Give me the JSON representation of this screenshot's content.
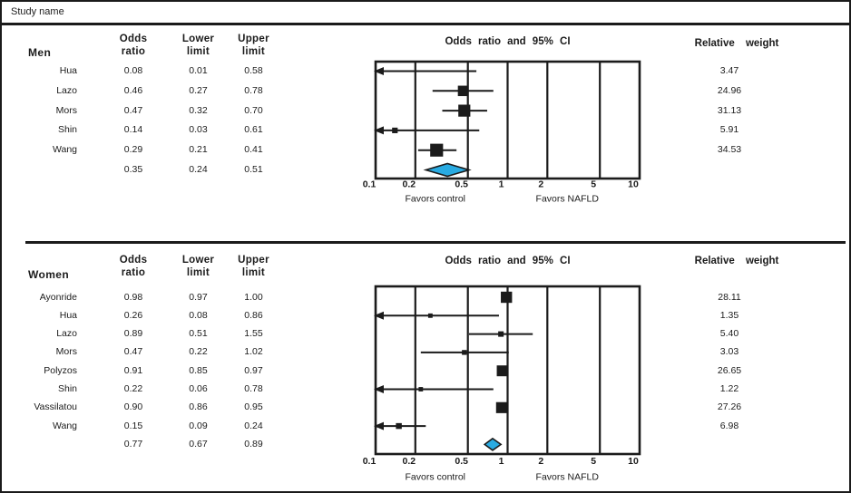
{
  "figure": {
    "study_name_label": "Study name",
    "ink_color": "#1b1b1b",
    "accent_color": "#29ABE2"
  },
  "chart_data": [
    {
      "type": "forest",
      "group_label": "Men",
      "plot_title": "Odds ratio and 95% CI",
      "col_headers": {
        "odds": [
          "Odds",
          "ratio"
        ],
        "lower": [
          "Lower",
          "limit"
        ],
        "upper": [
          "Upper",
          "limit"
        ],
        "weight": "Relative weight"
      },
      "axis": {
        "scale": "log",
        "min": 0.1,
        "max": 10,
        "ticks": [
          0.1,
          0.2,
          0.5,
          1,
          2,
          5,
          10
        ]
      },
      "favors_left": "Favors control",
      "favors_right": "Favors NAFLD",
      "studies": [
        {
          "study": "Hua",
          "odds_ratio": 0.08,
          "lower": 0.01,
          "upper": 0.58,
          "weight": 3.47
        },
        {
          "study": "Lazo",
          "odds_ratio": 0.46,
          "lower": 0.27,
          "upper": 0.78,
          "weight": 24.96
        },
        {
          "study": "Mors",
          "odds_ratio": 0.47,
          "lower": 0.32,
          "upper": 0.7,
          "weight": 31.13
        },
        {
          "study": "Shin",
          "odds_ratio": 0.14,
          "lower": 0.03,
          "upper": 0.61,
          "weight": 5.91
        },
        {
          "study": "Wang",
          "odds_ratio": 0.29,
          "lower": 0.21,
          "upper": 0.41,
          "weight": 34.53
        }
      ],
      "summary": {
        "odds_ratio": 0.35,
        "lower": 0.24,
        "upper": 0.51
      }
    },
    {
      "type": "forest",
      "group_label": "Women",
      "plot_title": "Odds ratio and 95% CI",
      "col_headers": {
        "odds": [
          "Odds",
          "ratio"
        ],
        "lower": [
          "Lower",
          "limit"
        ],
        "upper": [
          "Upper",
          "limit"
        ],
        "weight": "Relative weight"
      },
      "axis": {
        "scale": "log",
        "min": 0.1,
        "max": 10,
        "ticks": [
          0.1,
          0.2,
          0.5,
          1,
          2,
          5,
          10
        ]
      },
      "favors_left": "Favors control",
      "favors_right": "Favors NAFLD",
      "studies": [
        {
          "study": "Ayonride",
          "odds_ratio": 0.98,
          "lower": 0.97,
          "upper": 1.0,
          "weight": 28.11
        },
        {
          "study": "Hua",
          "odds_ratio": 0.26,
          "lower": 0.08,
          "upper": 0.86,
          "weight": 1.35
        },
        {
          "study": "Lazo",
          "odds_ratio": 0.89,
          "lower": 0.51,
          "upper": 1.55,
          "weight": 5.4
        },
        {
          "study": "Mors",
          "odds_ratio": 0.47,
          "lower": 0.22,
          "upper": 1.02,
          "weight": 3.03
        },
        {
          "study": "Polyzos",
          "odds_ratio": 0.91,
          "lower": 0.85,
          "upper": 0.97,
          "weight": 26.65
        },
        {
          "study": "Shin",
          "odds_ratio": 0.22,
          "lower": 0.06,
          "upper": 0.78,
          "weight": 1.22
        },
        {
          "study": "Vassilatou",
          "odds_ratio": 0.9,
          "lower": 0.86,
          "upper": 0.95,
          "weight": 27.26
        },
        {
          "study": "Wang",
          "odds_ratio": 0.15,
          "lower": 0.09,
          "upper": 0.24,
          "weight": 6.98
        }
      ],
      "summary": {
        "odds_ratio": 0.77,
        "lower": 0.67,
        "upper": 0.89
      }
    }
  ]
}
